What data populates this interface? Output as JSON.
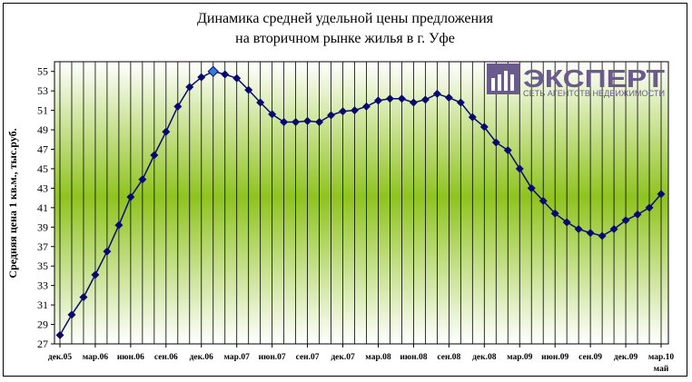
{
  "chart_data": {
    "type": "line",
    "title": [
      "Динамика средней удельной цены предложения",
      "на вторичном рынке жилья в г. Уфе"
    ],
    "ylabel": "Средняя цена 1 кв.м., тыс.руб.",
    "ylim": [
      27,
      56
    ],
    "yticks": [
      27,
      29,
      31,
      33,
      35,
      37,
      39,
      41,
      43,
      45,
      47,
      49,
      51,
      53,
      55
    ],
    "grid": "vertical",
    "legend": "none",
    "x_tick_labels": [
      "дек.05",
      "мар.06",
      "июн.06",
      "сен.06",
      "дек.06",
      "мар.07",
      "июн.07",
      "сен.07",
      "дек.07",
      "мар.08",
      "июн.08",
      "сен.08",
      "дек.08",
      "мар.09",
      "июн.09",
      "сен.09",
      "дек.09",
      "мар.10"
    ],
    "last_tick_second_line": "май",
    "highlight_index": 13,
    "series": [
      {
        "values": [
          27.9,
          30.0,
          31.8,
          34.1,
          36.5,
          39.2,
          42.1,
          43.9,
          46.4,
          48.8,
          51.4,
          53.4,
          54.4,
          55.0,
          54.7,
          54.3,
          53.1,
          51.8,
          50.6,
          49.8,
          49.8,
          49.9,
          49.8,
          50.5,
          50.9,
          51.0,
          51.4,
          52.0,
          52.2,
          52.2,
          51.8,
          52.1,
          52.7,
          52.3,
          51.8,
          50.3,
          49.3,
          47.7,
          46.9,
          45.0,
          43.0,
          41.7,
          40.4,
          39.5,
          38.8,
          38.4,
          38.1,
          38.8,
          39.7,
          40.3,
          41.0,
          42.4
        ],
        "color": "#0a0a6e"
      }
    ]
  },
  "logo": {
    "name": "ЭКСПЕРТ",
    "tagline": "СЕТЬ АГЕНТСТВ НЕДВИЖИМОСТИ"
  },
  "colors": {
    "line": "#0a0a6e",
    "marker": "#0a0a6e",
    "highlight_marker": "#3a78d6",
    "band_center": "#8fc31f",
    "band_edge": "#ffffff",
    "logo": "#6a5a8e"
  }
}
